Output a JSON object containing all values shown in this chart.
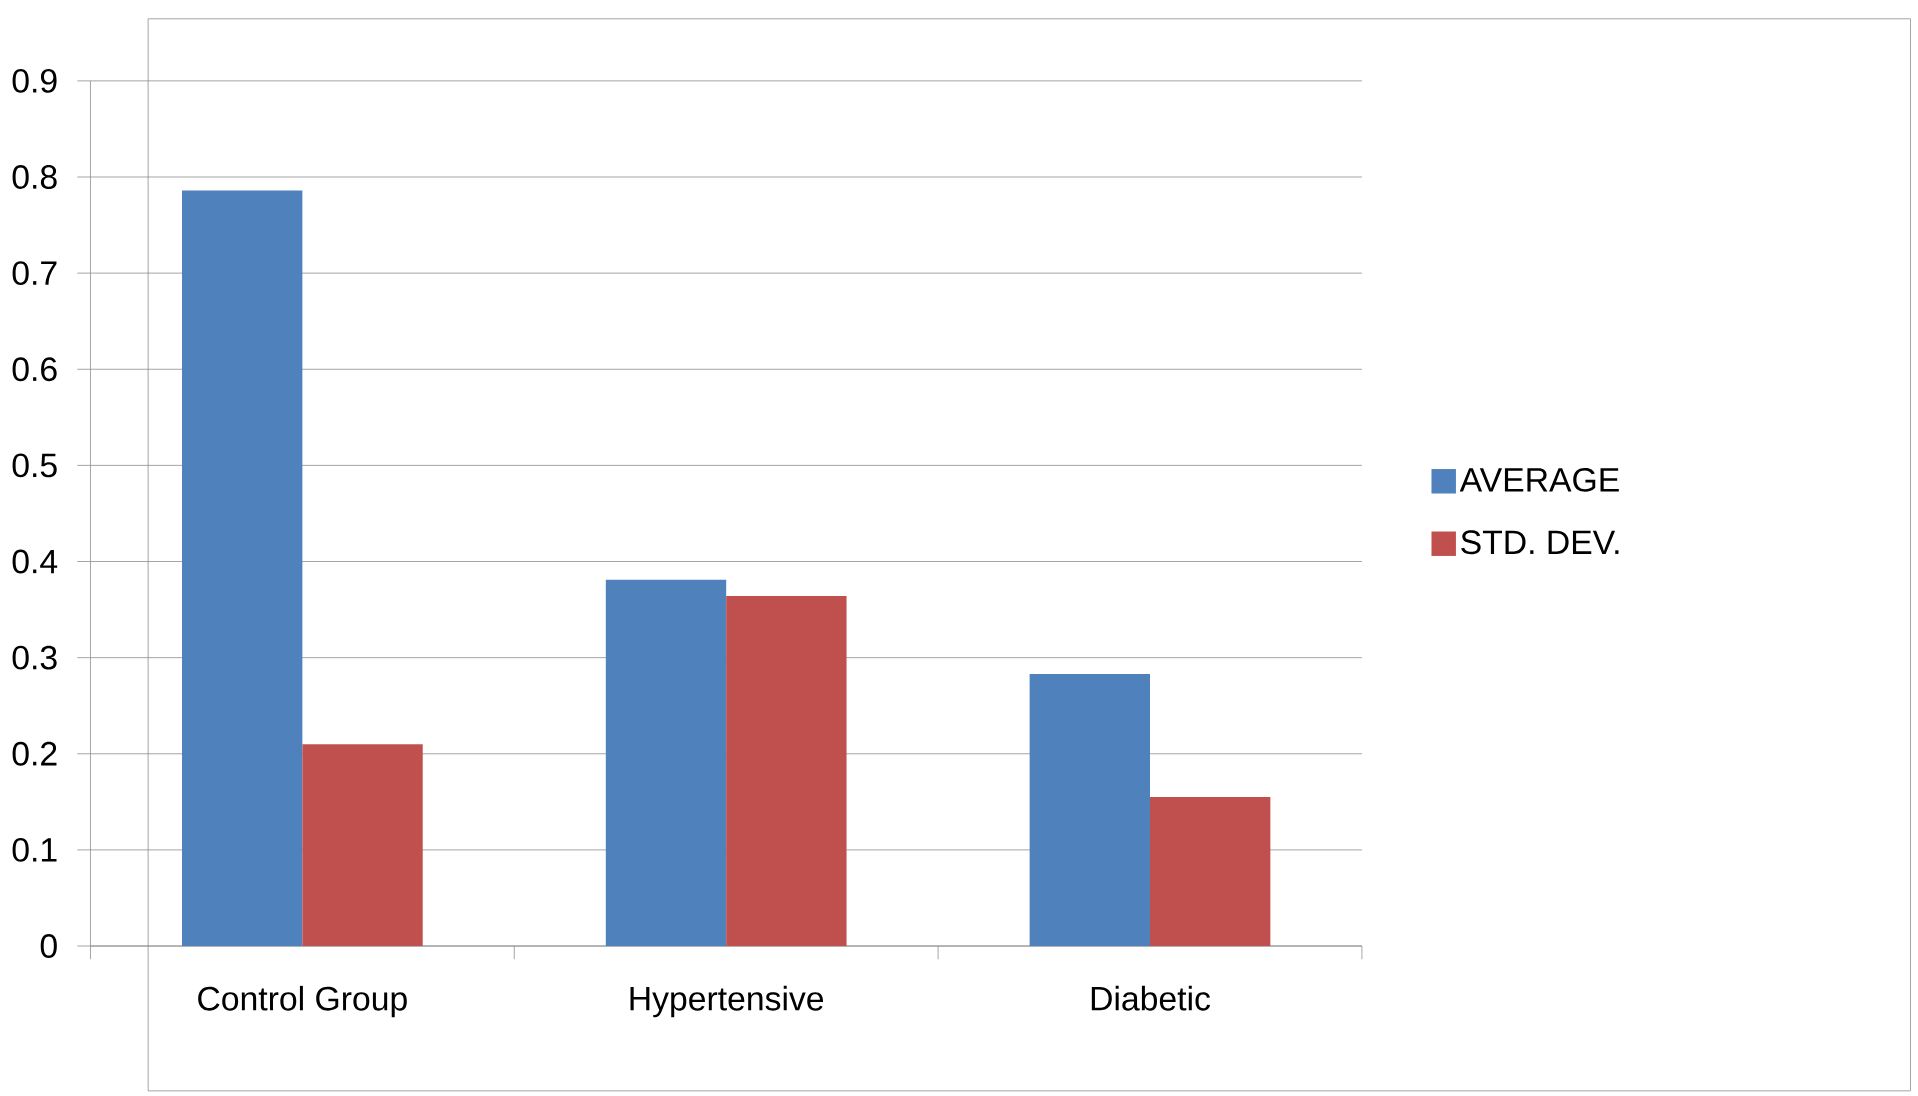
{
  "chart_data": {
    "type": "bar",
    "categories": [
      "Control Group",
      "Hypertensive",
      "Diabetic"
    ],
    "series": [
      {
        "name": "AVERAGE",
        "color": "#4f81bd",
        "values": [
          0.786,
          0.381,
          0.283
        ]
      },
      {
        "name": "STD. DEV.",
        "color": "#c0504d",
        "values": [
          0.21,
          0.364,
          0.155
        ]
      }
    ],
    "ylim": [
      0,
      0.9
    ],
    "yticks": [
      0,
      0.1,
      0.2,
      0.3,
      0.4,
      0.5,
      0.6,
      0.7,
      0.8,
      0.9
    ],
    "grid": "y",
    "legend": "right"
  }
}
